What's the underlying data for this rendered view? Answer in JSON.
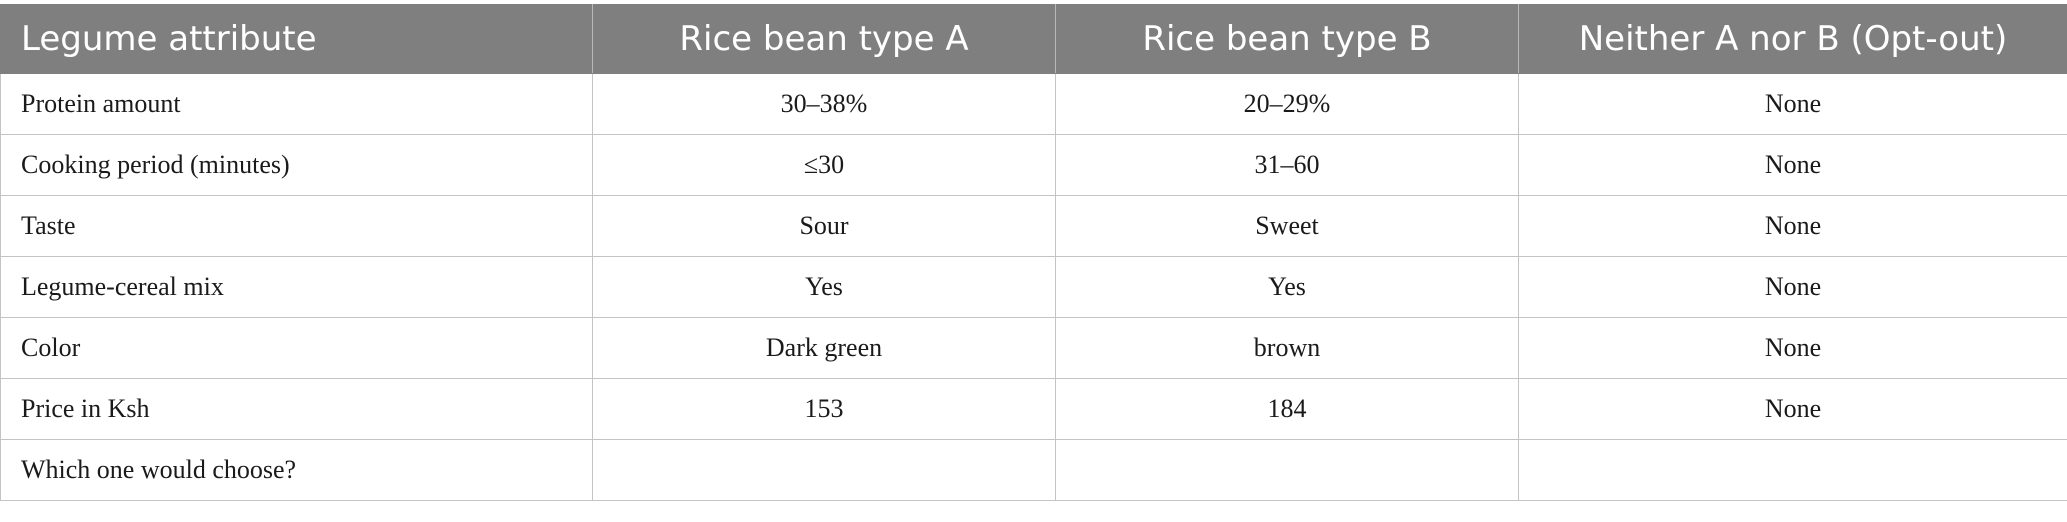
{
  "table": {
    "headers": [
      "Legume attribute",
      "Rice bean type A",
      "Rice bean type B",
      "Neither A nor B (Opt-out)"
    ],
    "rows": [
      [
        "Protein amount",
        "30–38%",
        "20–29%",
        "None"
      ],
      [
        "Cooking period (minutes)",
        "≤30",
        "31–60",
        "None"
      ],
      [
        "Taste",
        "Sour",
        "Sweet",
        "None"
      ],
      [
        "Legume-cereal mix",
        "Yes",
        "Yes",
        "None"
      ],
      [
        "Color",
        "Dark green",
        "brown",
        "None"
      ],
      [
        "Price in Ksh",
        "153",
        "184",
        "None"
      ],
      [
        "Which one would choose?",
        "",
        "",
        ""
      ]
    ]
  },
  "colors": {
    "header_bg": "#7f7f7f",
    "header_text": "#ffffff",
    "border": "#c4c4c4"
  }
}
